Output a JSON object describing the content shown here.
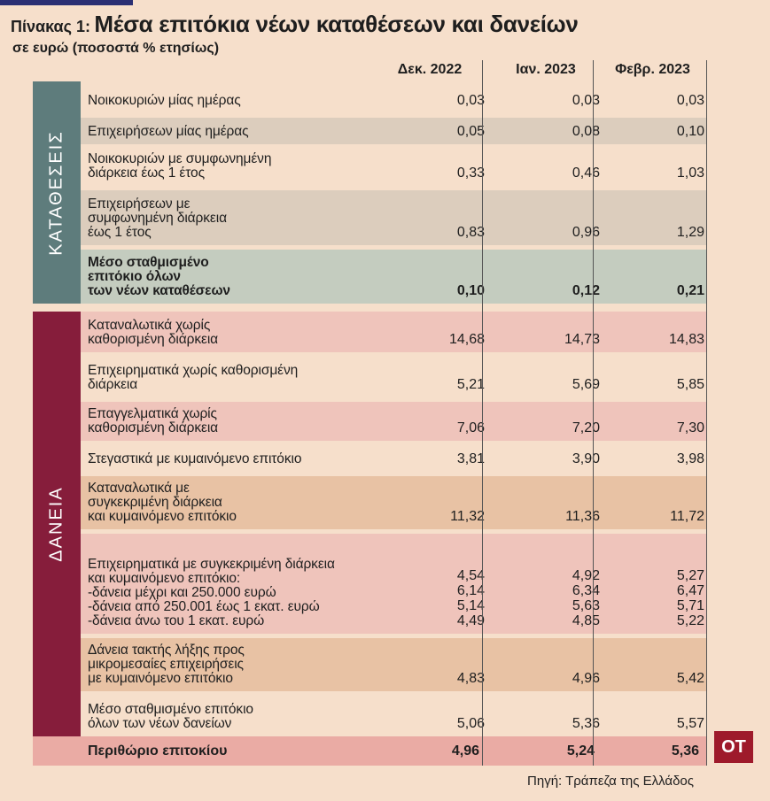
{
  "title": {
    "label": "Πίνακας 1:",
    "main": "Μέσα επιτόκια νέων καταθέσεων και δανείων"
  },
  "subtitle": "σε ευρώ (ποσοστά % ετησίως)",
  "columns": [
    "Δεκ. 2022",
    "Ιαν. 2023",
    "Φεβρ. 2023"
  ],
  "sections": {
    "deposits": "ΚΑΤΑΘΕΣΕΙΣ",
    "loans": "ΔΑΝΕΙΑ"
  },
  "deposits_rows": [
    {
      "label": "Νοικοκυριών μίας ημέρας",
      "values": [
        "0,03",
        "0,03",
        "0,03"
      ]
    },
    {
      "label": "Επιχειρήσεων μίας ημέρας",
      "values": [
        "0,05",
        "0,08",
        "0,10"
      ]
    },
    {
      "label": "Νοικοκυριών με συμφωνημένη\nδιάρκεια έως 1 έτος",
      "values": [
        "0,33",
        "0,46",
        "1,03"
      ]
    },
    {
      "label": "Επιχειρήσεων με\nσυμφωνημένη διάρκεια\nέως 1 έτος",
      "values": [
        "0,83",
        "0,96",
        "1,29"
      ]
    },
    {
      "label": "Μέσο σταθμισμένο\nεπιτόκιο όλων\nτων νέων καταθέσεων",
      "values": [
        "0,10",
        "0,12",
        "0,21"
      ]
    }
  ],
  "loans_rows": [
    {
      "label": "Καταναλωτικά χωρίς\nκαθορισμένη διάρκεια",
      "values": [
        "14,68",
        "14,73",
        "14,83"
      ]
    },
    {
      "label": "Επιχειρηματικά χωρίς καθορισμένη\nδιάρκεια",
      "values": [
        "5,21",
        "5,69",
        "5,85"
      ]
    },
    {
      "label": "Επαγγελματικά χωρίς\nκαθορισμένη διάρκεια",
      "values": [
        "7,06",
        "7,20",
        "7,30"
      ]
    },
    {
      "label": "Στεγαστικά με κυμαινόμενο επιτόκιο",
      "values": [
        "3,81",
        "3,90",
        "3,98"
      ]
    },
    {
      "label": "Καταναλωτικά με\nσυγκεκριμένη διάρκεια\nκαι κυμαινόμενο επιτόκιο",
      "values": [
        "11,32",
        "11,36",
        "11,72"
      ]
    },
    {
      "label": "Επιχειρηματικά με συγκεκριμένη διάρκεια\nκαι κυμαινόμενο επιτόκιο:\n-δάνεια μέχρι και 250.000 ευρώ\n-δάνεια από 250.001 έως 1 εκατ. ευρώ\n-δάνεια άνω του 1 εκατ. ευρώ",
      "values": [
        "4,54\n6,14\n5,14\n4,49",
        "4,92\n6,34\n5,63\n4,85",
        "5,27\n6,47\n5,71\n5,22"
      ]
    },
    {
      "label": "Δάνεια τακτής λήξης προς\nμικρομεσαίες επιχειρήσεις\nμε κυμαινόμενο επιτόκιο",
      "values": [
        "4,83",
        "4,96",
        "5,42"
      ]
    },
    {
      "label": "Μέσο σταθμισμένο επιτόκιο\nόλων των νέων δανείων",
      "values": [
        "5,06",
        "5,36",
        "5,57"
      ]
    }
  ],
  "margin_row": {
    "label": "Περιθώριο επιτοκίου",
    "values": [
      "4,96",
      "5,24",
      "5,36"
    ]
  },
  "source": "Πηγή: Τράπεζα της Ελλάδος",
  "logo_text": "ΟΤ",
  "colors": {
    "deposits_band": "#5e7c7c",
    "loans_band": "#861d3b",
    "deposit_alt": "#dccdbd",
    "deposit_summary": "#c4ccbf",
    "loan_pink": "#efc4bb",
    "loan_tan": "#e8c2a4",
    "margin": "#eaaba4",
    "background": "#f6dfcb"
  }
}
